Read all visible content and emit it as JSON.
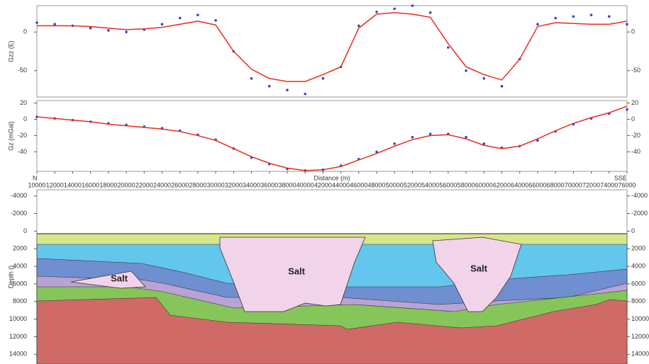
{
  "chart_data": [
    {
      "type": "profile",
      "ylabel": "Gzz (E)",
      "xlim": [
        10000,
        76000
      ],
      "ylim": [
        -84,
        34
      ],
      "yticks": [
        0,
        -50
      ],
      "x": [
        10000,
        12000,
        14000,
        16000,
        18000,
        20000,
        22000,
        24000,
        26000,
        28000,
        30000,
        32000,
        34000,
        36000,
        38000,
        40000,
        42000,
        44000,
        46000,
        48000,
        50000,
        52000,
        54000,
        56000,
        58000,
        60000,
        62000,
        64000,
        66000,
        68000,
        70000,
        72000,
        74000,
        76000
      ],
      "series": [
        {
          "style": "markers",
          "color": "#3344cc",
          "values": [
            12,
            10,
            8,
            5,
            2,
            0,
            3,
            10,
            18,
            22,
            15,
            -25,
            -60,
            -70,
            -75,
            -80,
            -60,
            -45,
            8,
            26,
            30,
            34,
            25,
            -20,
            -50,
            -60,
            -70,
            -35,
            10,
            18,
            20,
            22,
            20,
            10
          ]
        },
        {
          "style": "line",
          "color": "#ee2a1a",
          "values": [
            8,
            8,
            8,
            7,
            5,
            3,
            4,
            6,
            10,
            14,
            9,
            -25,
            -48,
            -60,
            -64,
            -64,
            -55,
            -45,
            5,
            23,
            25,
            23,
            19,
            -15,
            -45,
            -55,
            -62,
            -35,
            7,
            12,
            11,
            10,
            10,
            14
          ]
        }
      ]
    },
    {
      "type": "profile",
      "ylabel": "Gz (mGal)",
      "xlabel": "Distance (m)",
      "x_start_label": "N",
      "x_end_label": "SSE",
      "xlim": [
        10000,
        76000
      ],
      "ylim": [
        -64,
        23
      ],
      "yticks": [
        20,
        0,
        -20,
        -40
      ],
      "xticks": [
        10000,
        12000,
        14000,
        16000,
        18000,
        20000,
        22000,
        24000,
        26000,
        28000,
        30000,
        32000,
        34000,
        36000,
        38000,
        40000,
        42000,
        44000,
        46000,
        48000,
        50000,
        52000,
        54000,
        56000,
        58000,
        60000,
        62000,
        64000,
        66000,
        68000,
        70000,
        72000,
        74000,
        76000
      ],
      "x": [
        10000,
        12000,
        14000,
        16000,
        18000,
        20000,
        22000,
        24000,
        26000,
        28000,
        30000,
        32000,
        34000,
        36000,
        38000,
        40000,
        42000,
        44000,
        46000,
        48000,
        50000,
        52000,
        54000,
        56000,
        58000,
        60000,
        62000,
        64000,
        66000,
        68000,
        70000,
        72000,
        74000,
        76000
      ],
      "series": [
        {
          "style": "markers",
          "color": "#3344cc",
          "values": [
            3,
            1,
            -1,
            -3,
            -5,
            -7,
            -9,
            -11,
            -14,
            -19,
            -25,
            -36,
            -47,
            -55,
            -61,
            -63,
            -62,
            -57,
            -49,
            -40,
            -30,
            -22,
            -18,
            -18,
            -22,
            -30,
            -35,
            -33,
            -26,
            -15,
            -6,
            1,
            7,
            12
          ]
        },
        {
          "style": "line",
          "color": "#ee2a1a",
          "values": [
            3,
            1,
            -1,
            -3,
            -6,
            -8,
            -10,
            -12,
            -15,
            -20,
            -26,
            -36,
            -46,
            -54,
            -60,
            -63,
            -62,
            -58,
            -50,
            -42,
            -33,
            -25,
            -20,
            -19,
            -24,
            -32,
            -36,
            -33,
            -24,
            -14,
            -5,
            2,
            8,
            16
          ]
        }
      ]
    },
    {
      "type": "section",
      "ylabel": "Depth ()",
      "ylim": [
        -4700,
        15100
      ],
      "inverted": true,
      "yticks": [
        -4000,
        -2000,
        0,
        2000,
        4000,
        6000,
        8000,
        10000,
        12000,
        14000
      ],
      "annotations": [
        "Salt",
        "Salt",
        "Salt"
      ]
    }
  ]
}
